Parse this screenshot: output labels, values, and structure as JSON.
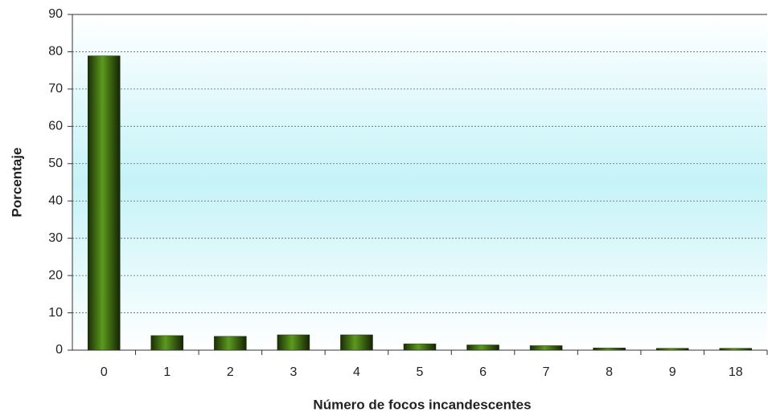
{
  "chart_data": {
    "type": "bar",
    "x_label": "Número de focos incandescentes",
    "y_label": "Porcentaje",
    "categories": [
      "0",
      "1",
      "2",
      "3",
      "4",
      "5",
      "6",
      "7",
      "8",
      "9",
      "18"
    ],
    "values": [
      78.9,
      3.9,
      3.7,
      4.1,
      4.1,
      1.7,
      1.4,
      1.2,
      0.6,
      0.5,
      0.5
    ],
    "color": "#3a6b10",
    "ylim": [
      0,
      90
    ],
    "yticks": [
      0,
      10,
      20,
      30,
      40,
      50,
      60,
      70,
      80,
      90
    ],
    "grid": true
  }
}
